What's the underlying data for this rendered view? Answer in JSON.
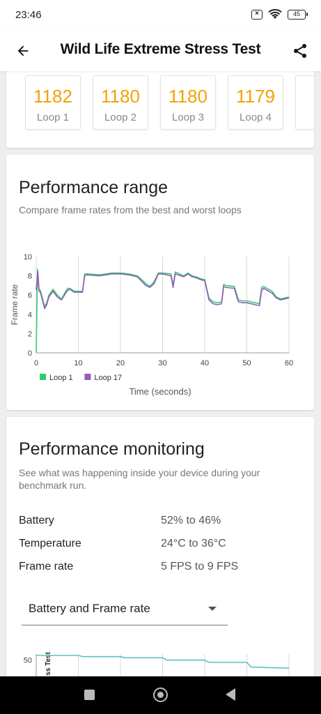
{
  "status_bar": {
    "time": "23:46",
    "battery": "45"
  },
  "app_bar": {
    "title": "Wild Life Extreme Stress Test"
  },
  "loops": [
    {
      "score": "1182",
      "label": "Loop 1"
    },
    {
      "score": "1180",
      "label": "Loop 2"
    },
    {
      "score": "1180",
      "label": "Loop 3"
    },
    {
      "score": "1179",
      "label": "Loop 4"
    }
  ],
  "performance_range": {
    "title": "Performance range",
    "subtitle": "Compare frame rates from the best and worst loops"
  },
  "chart_data": [
    {
      "type": "line",
      "xlabel": "Time (seconds)",
      "ylabel": "Frame rate",
      "xlim": [
        0,
        60
      ],
      "ylim": [
        0,
        10
      ],
      "x_ticks": [
        "0",
        "10",
        "20",
        "30",
        "40",
        "50",
        "60"
      ],
      "y_ticks": [
        "0",
        "2",
        "4",
        "6",
        "8",
        "10"
      ],
      "grid": "vertical",
      "legend": "bottom-left",
      "series": [
        {
          "name": "Loop 1",
          "color": "#2ecc71",
          "x": [
            0,
            0.3,
            0.6,
            1,
            2,
            2.5,
            3,
            4,
            5,
            6,
            7,
            7.5,
            8,
            9,
            10,
            11,
            11.5,
            12,
            15,
            18,
            20,
            22,
            24,
            26,
            27,
            28,
            29,
            30,
            32,
            32.5,
            33,
            35,
            36,
            37,
            38,
            39,
            40,
            41,
            42,
            43,
            44,
            44.5,
            45,
            47,
            48,
            49,
            49.5,
            50,
            52,
            53,
            53.5,
            54,
            56,
            57,
            58,
            59,
            60
          ],
          "y": [
            0,
            8.7,
            6.6,
            6.5,
            4.8,
            5.2,
            6.0,
            6.6,
            6.0,
            5.6,
            6.4,
            6.7,
            6.7,
            6.4,
            6.4,
            6.4,
            8.2,
            8.2,
            8.1,
            8.3,
            8.3,
            8.2,
            8.0,
            7.2,
            6.9,
            7.4,
            8.3,
            8.3,
            8.2,
            7.0,
            8.4,
            8.0,
            8.3,
            8.0,
            7.9,
            7.7,
            7.6,
            5.7,
            5.3,
            5.2,
            5.3,
            7.1,
            7.0,
            6.9,
            5.5,
            5.4,
            5.4,
            5.4,
            5.2,
            5.1,
            6.8,
            6.9,
            6.4,
            5.8,
            5.6,
            5.7,
            5.8
          ]
        },
        {
          "name": "Loop 17",
          "color": "#9b59b6",
          "x": [
            0,
            0.4,
            0.7,
            1,
            2,
            2.5,
            3,
            4,
            5,
            6,
            7,
            7.5,
            8,
            9,
            10,
            11,
            11.5,
            12,
            15,
            18,
            20,
            22,
            24,
            26,
            27,
            28,
            29,
            30,
            32,
            32.5,
            33,
            35,
            36,
            37,
            38,
            39,
            40,
            41,
            42,
            43,
            44,
            44.5,
            45,
            47,
            48,
            49,
            49.5,
            50,
            52,
            53,
            53.5,
            54,
            56,
            57,
            58,
            59,
            60
          ],
          "y": [
            6.5,
            8.4,
            6.4,
            6.3,
            4.6,
            5.0,
            5.8,
            6.4,
            5.8,
            5.5,
            6.2,
            6.5,
            6.6,
            6.3,
            6.3,
            6.3,
            8.0,
            8.1,
            8.0,
            8.2,
            8.2,
            8.1,
            7.9,
            7.0,
            6.8,
            7.2,
            8.2,
            8.2,
            8.0,
            6.8,
            8.2,
            7.9,
            8.2,
            7.9,
            7.8,
            7.6,
            7.5,
            5.5,
            5.1,
            5.0,
            5.1,
            6.9,
            6.8,
            6.7,
            5.3,
            5.2,
            5.2,
            5.2,
            5.0,
            4.9,
            6.5,
            6.7,
            6.2,
            5.7,
            5.5,
            5.6,
            5.7
          ]
        }
      ]
    },
    {
      "type": "line",
      "title": "",
      "ylabel": "ss Test",
      "y_ticks": [
        "50"
      ],
      "ylim": [
        40,
        55
      ],
      "xlim": [
        0,
        60
      ],
      "series": [
        {
          "color": "#5bc0be",
          "x": [
            0,
            5,
            10,
            11,
            20,
            21,
            30,
            31,
            40,
            41,
            50,
            51,
            60
          ],
          "y": [
            52,
            52,
            52,
            51.5,
            51.5,
            51,
            51,
            50,
            50,
            49,
            49,
            47,
            46.5
          ]
        }
      ]
    }
  ],
  "performance_monitoring": {
    "title": "Performance monitoring",
    "subtitle_line1": "See what was happening inside your device during your",
    "subtitle_line2": "benchmark run.",
    "rows": [
      {
        "label": "Battery",
        "value": "52% to 46%"
      },
      {
        "label": "Temperature",
        "value": "24°C to 36°C"
      },
      {
        "label": "Frame rate",
        "value": "5 FPS to 9 FPS"
      }
    ],
    "dropdown": {
      "selected": "Battery and Frame rate"
    }
  }
}
